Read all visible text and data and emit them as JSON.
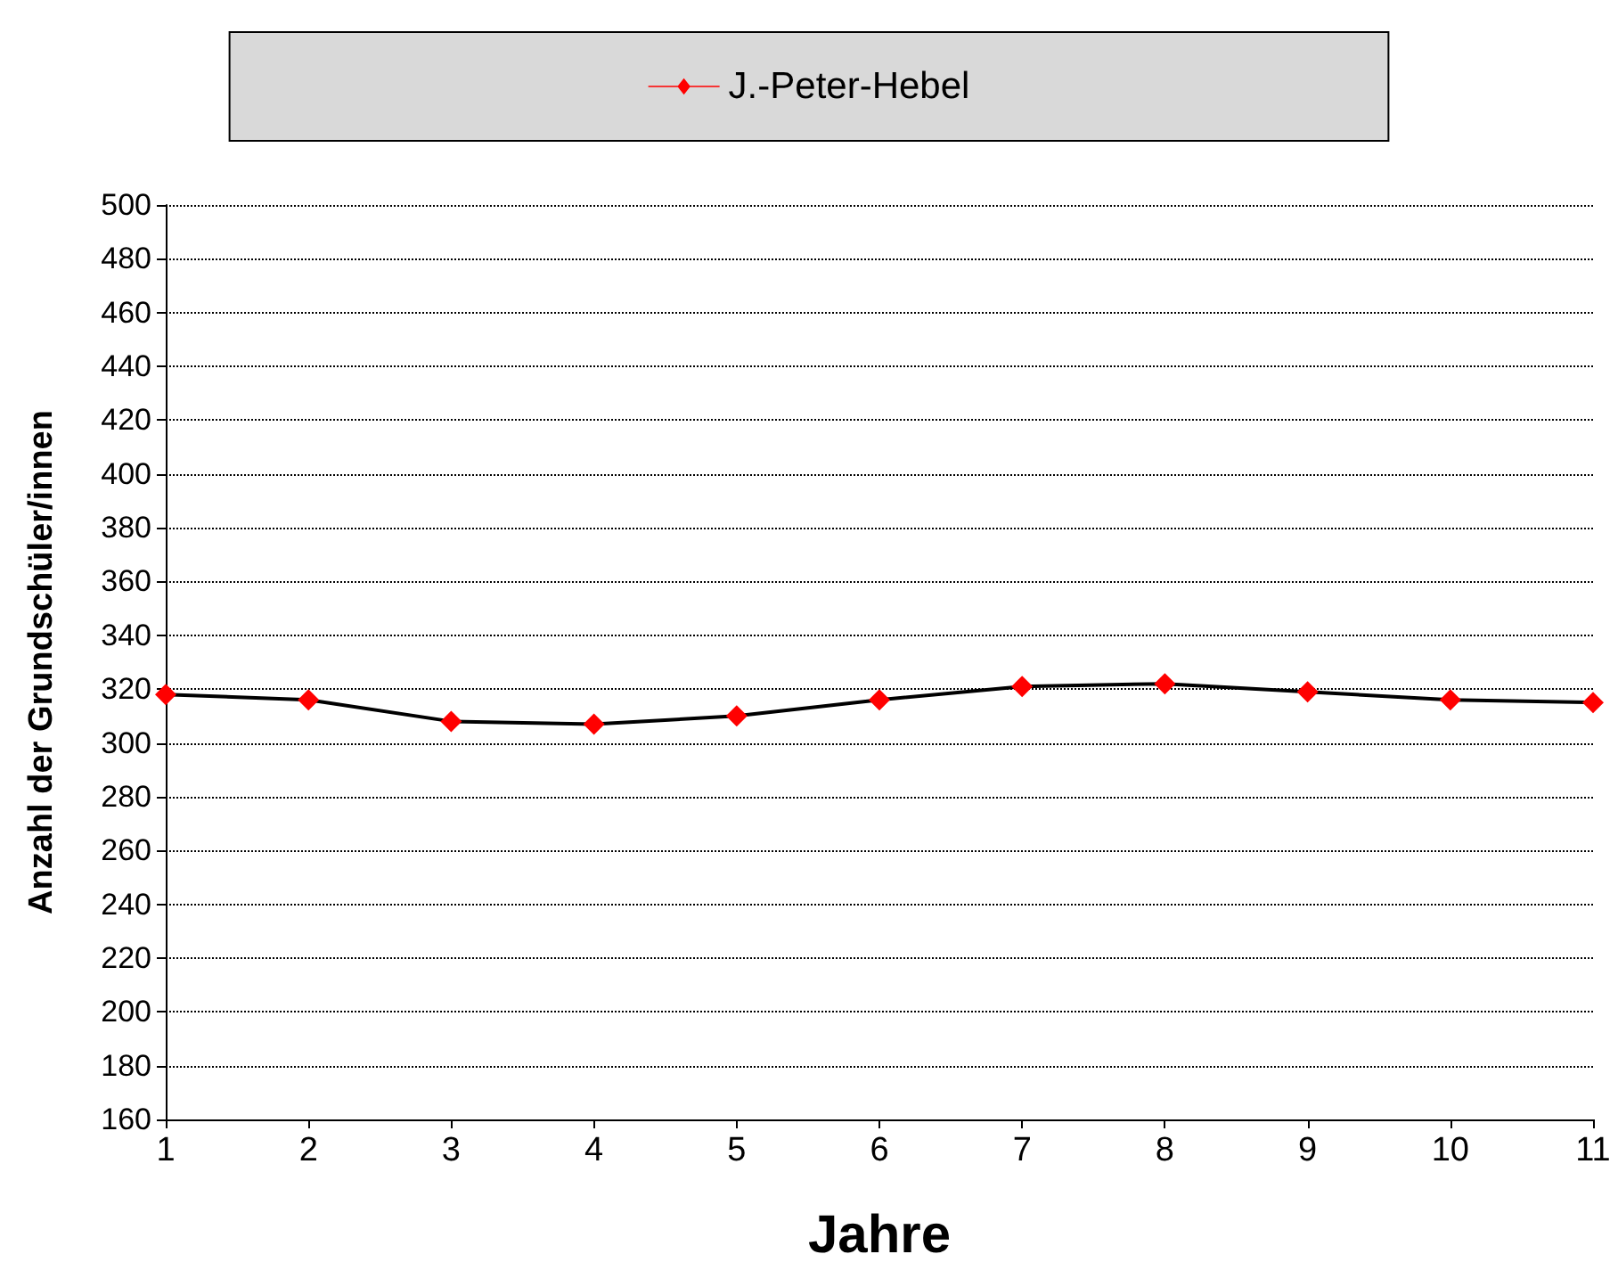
{
  "chart_data": {
    "type": "line",
    "xlabel": "Jahre",
    "ylabel": "Anzahl der Grundschüler/innen",
    "x": [
      1,
      2,
      3,
      4,
      5,
      6,
      7,
      8,
      9,
      10,
      11
    ],
    "series": [
      {
        "name": "J.-Peter-Hebel",
        "color": "#ff0000",
        "values": [
          318,
          316,
          308,
          307,
          310,
          316,
          321,
          322,
          319,
          316,
          315
        ]
      }
    ],
    "xlim": [
      1,
      11
    ],
    "xticks": [
      1,
      2,
      3,
      4,
      5,
      6,
      7,
      8,
      9,
      10,
      11
    ],
    "ylim": [
      160,
      500
    ],
    "yticks": [
      160,
      180,
      200,
      220,
      240,
      260,
      280,
      300,
      320,
      340,
      360,
      380,
      400,
      420,
      440,
      460,
      480,
      500
    ],
    "grid": "y",
    "legend": "top",
    "marker": "diamond",
    "line_style": "solid"
  }
}
